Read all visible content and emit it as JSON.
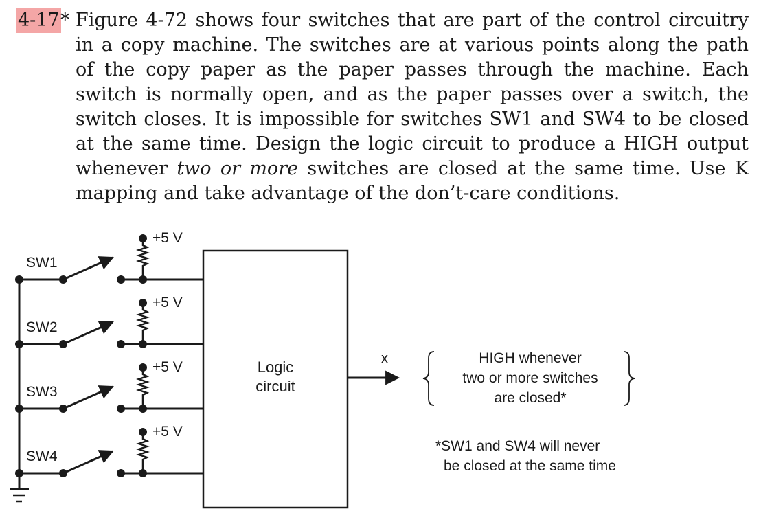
{
  "problem": {
    "number": "4-17",
    "star": "*",
    "lines": [
      "Figure 4-72 shows four switches that are part of the control circuitry",
      "in a copy machine. The switches are at various points along the path",
      "of the copy paper as the paper passes through the machine. Each",
      "switch is normally open, and as the paper passes over a switch, the",
      "switch closes. It is impossible for switches SW1 and SW4 to be closed",
      "at the same time. Design the logic circuit to produce a HIGH output",
      "mapping and take advantage of the don’t-care conditions."
    ],
    "line7_before": "whenever ",
    "line7_emph": "two or more",
    "line7_after": " switches are closed at the same time. Use K"
  },
  "figure": {
    "supply_label": "+5 V",
    "switches": [
      "SW1",
      "SW2",
      "SW3",
      "SW4"
    ],
    "logic_box": [
      "Logic",
      "circuit"
    ],
    "output_label": "x",
    "output_desc": [
      "HIGH whenever",
      "two or more switches",
      "are closed*"
    ],
    "footnote": [
      "*SW1 and SW4 will never",
      "be closed at the same time"
    ]
  }
}
